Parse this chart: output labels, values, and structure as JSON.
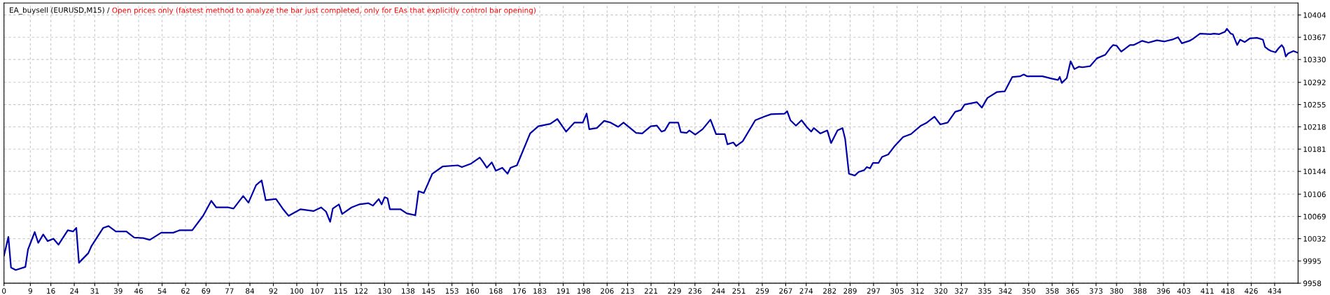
{
  "chart_data": {
    "type": "line",
    "title": "EA_buysell (EURUSD,M15) /",
    "subtitle": "Open prices only (fastest method to analyze the bar just completed, only for EAs that explicitly control bar opening)",
    "x": [
      0,
      1.5,
      2.4,
      4,
      7.3,
      8.2,
      10.5,
      11.7,
      13.4,
      14.9,
      16.9,
      18.6,
      21.8,
      23.6,
      24.7,
      25.6,
      28.8,
      29.9,
      33.9,
      35.7,
      38.2,
      41.8,
      44.4,
      47.6,
      49.8,
      53.7,
      57.8,
      60,
      64.3,
      68,
      70.8,
      72.5,
      76.6,
      78.4,
      81.7,
      83.5,
      86.1,
      88,
      89.4,
      92.9,
      95.2,
      97.2,
      101.3,
      105.7,
      108.3,
      110,
      111.4,
      112.3,
      114.4,
      115.5,
      118.7,
      121.3,
      124.5,
      126,
      128,
      129,
      130,
      131,
      131.8,
      135.4,
      137.6,
      140.5,
      141.6,
      143.4,
      146.3,
      149.8,
      155,
      156.4,
      159.6,
      162.5,
      163.7,
      164.9,
      166.6,
      168,
      170.2,
      172,
      173,
      175.2,
      179.7,
      182.5,
      186.6,
      189,
      192,
      194.8,
      197.7,
      199,
      199.9,
      202.5,
      205,
      207.2,
      209.8,
      211.6,
      215.9,
      218,
      220.9,
      223,
      224.6,
      225.7,
      227.3,
      230.3,
      231.2,
      233.2,
      234.1,
      236.1,
      238.6,
      241.3,
      243.2,
      246.2,
      247.1,
      249.1,
      250.1,
      252.3,
      256.6,
      259.7,
      262,
      266.6,
      267.5,
      268.6,
      270.5,
      272.4,
      274.3,
      275.7,
      276.6,
      278.8,
      281.2,
      282.5,
      284.7,
      286.4,
      287.3,
      288.6,
      290.6,
      291.9,
      293.8,
      294.7,
      295.8,
      296.8,
      298.7,
      299.9,
      302,
      304.2,
      307.1,
      309.8,
      313.2,
      315.2,
      317.8,
      319.8,
      322.3,
      324.9,
      326.9,
      328.1,
      332.3,
      334,
      335.9,
      339.2,
      341.8,
      344.4,
      347,
      348.3,
      349.5,
      354.7,
      358,
      360,
      360.6,
      361.3,
      363,
      364.3,
      365.6,
      367.1,
      368.3,
      371,
      373.3,
      376.2,
      377.7,
      378.8,
      380,
      381.6,
      384.6,
      385.8,
      388.7,
      390.9,
      393.8,
      396.4,
      399,
      401,
      402.3,
      404.9,
      406.3,
      408.5,
      412.1,
      413.3,
      415,
      417,
      417.7,
      419,
      419.7,
      421.2,
      422.2,
      423.8,
      425.5,
      428,
      430,
      430.7,
      432,
      432.8,
      434.3,
      435.4,
      436.4,
      437.1,
      437.8,
      438.6,
      440.4,
      442
    ],
    "series": [
      {
        "color": "#0000a8",
        "values": [
          10004,
          10035,
          9984,
          9980,
          9985,
          10014,
          10043,
          10025,
          10039,
          10028,
          10032,
          10022,
          10046,
          10044,
          10050,
          9992,
          10008,
          10020,
          10050,
          10053,
          10044,
          10044,
          10034,
          10033,
          10030,
          10042,
          10042,
          10046,
          10046,
          10070,
          10095,
          10084,
          10084,
          10082,
          10103,
          10092,
          10121,
          10129,
          10096,
          10098,
          10082,
          10070,
          10081,
          10078,
          10084,
          10077,
          10060,
          10082,
          10089,
          10073,
          10084,
          10089,
          10091,
          10087,
          10098,
          10089,
          10101,
          10099,
          10081,
          10081,
          10074,
          10071,
          10111,
          10108,
          10140,
          10152,
          10154,
          10151,
          10157,
          10167,
          10159,
          10150,
          10159,
          10145,
          10150,
          10140,
          10150,
          10154,
          10207,
          10219,
          10223,
          10231,
          10210,
          10225,
          10225,
          10240,
          10214,
          10216,
          10228,
          10225,
          10218,
          10225,
          10208,
          10207,
          10219,
          10220,
          10210,
          10212,
          10225,
          10225,
          10209,
          10208,
          10212,
          10205,
          10214,
          10230,
          10206,
          10206,
          10189,
          10192,
          10186,
          10194,
          10229,
          10235,
          10239,
          10240,
          10244,
          10229,
          10220,
          10229,
          10217,
          10210,
          10216,
          10207,
          10212,
          10191,
          10212,
          10216,
          10198,
          10140,
          10137,
          10143,
          10146,
          10151,
          10149,
          10158,
          10158,
          10168,
          10172,
          10186,
          10201,
          10206,
          10220,
          10225,
          10235,
          10222,
          10225,
          10243,
          10246,
          10255,
          10259,
          10250,
          10266,
          10276,
          10277,
          10301,
          10302,
          10305,
          10302,
          10302,
          10298,
          10296,
          10301,
          10291,
          10299,
          10327,
          10314,
          10318,
          10317,
          10319,
          10332,
          10338,
          10348,
          10354,
          10353,
          10343,
          10354,
          10354,
          10361,
          10358,
          10362,
          10360,
          10363,
          10367,
          10357,
          10361,
          10365,
          10373,
          10372,
          10373,
          10372,
          10376,
          10381,
          10373,
          10372,
          10354,
          10363,
          10359,
          10365,
          10366,
          10363,
          10351,
          10346,
          10344,
          10342,
          10349,
          10354,
          10349,
          10335,
          10340,
          10344,
          10341
        ]
      }
    ],
    "xlim": [
      0,
      442
    ],
    "ylim": [
      9958,
      10424
    ],
    "xticks": [
      0,
      9,
      16,
      24,
      31,
      39,
      46,
      54,
      62,
      69,
      77,
      84,
      92,
      100,
      107,
      115,
      122,
      130,
      138,
      145,
      153,
      160,
      168,
      176,
      183,
      191,
      198,
      206,
      213,
      221,
      229,
      236,
      244,
      251,
      259,
      267,
      274,
      282,
      289,
      297,
      305,
      312,
      320,
      327,
      335,
      342,
      350,
      358,
      365,
      373,
      380,
      388,
      396,
      403,
      411,
      418,
      426,
      434
    ],
    "yticks": [
      9958,
      9995,
      10032,
      10069,
      10106,
      10144,
      10181,
      10218,
      10255,
      10292,
      10330,
      10367,
      10404
    ],
    "grid": true,
    "marker": "none",
    "line_style": "solid",
    "legend": false
  }
}
